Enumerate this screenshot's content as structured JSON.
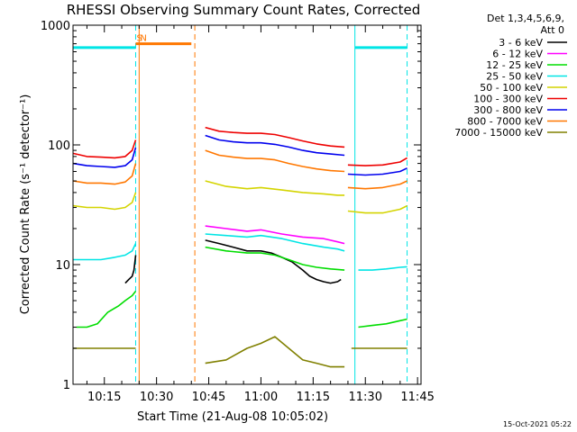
{
  "chart_data": {
    "type": "line",
    "title": "RHESSI Observing Summary Count Rates, Corrected",
    "xlabel": "Start Time (21-Aug-08 10:05:02)",
    "ylabel": "Corrected Count Rate (s⁻¹ detector⁻¹)",
    "yscale": "log",
    "xlim": [
      "10:06",
      "11:46"
    ],
    "ylim": [
      1,
      1000
    ],
    "x_ticks": [
      "10:15",
      "10:30",
      "10:45",
      "11:00",
      "11:15",
      "11:30",
      "11:45"
    ],
    "y_ticks": [
      "1",
      "10",
      "100",
      "1000"
    ],
    "legend_header": [
      "Det 1,3,4,5,6,9,",
      "Att 0"
    ],
    "legend_position": "right",
    "series": [
      {
        "name": "3 - 6 keV",
        "color": "#000000",
        "segments": [
          {
            "x": [
              "10:21",
              "10:22",
              "10:23",
              "10:23:30",
              "10:24"
            ],
            "y": [
              7,
              7.5,
              8,
              9,
              12
            ]
          },
          {
            "x": [
              "10:44",
              "10:48",
              "10:52",
              "10:56",
              "11:00",
              "11:03",
              "11:06",
              "11:09",
              "11:12",
              "11:14",
              "11:16",
              "11:18",
              "11:20",
              "11:22",
              "11:23"
            ],
            "y": [
              16,
              15,
              14,
              13,
              13,
              12.5,
              11.5,
              10.5,
              9,
              8,
              7.5,
              7.2,
              7.0,
              7.2,
              7.5
            ]
          }
        ]
      },
      {
        "name": "6 - 12 keV",
        "color": "#ff00ff",
        "segments": [
          {
            "x": [
              "10:44",
              "10:50",
              "10:56",
              "11:00",
              "11:06",
              "11:12",
              "11:18",
              "11:22",
              "11:24"
            ],
            "y": [
              21,
              20,
              19,
              19.5,
              18,
              17,
              16.5,
              15.5,
              15
            ]
          }
        ]
      },
      {
        "name": "12 - 25 keV",
        "color": "#00dd00",
        "segments": [
          {
            "x": [
              "10:07",
              "10:10",
              "10:13",
              "10:16",
              "10:19",
              "10:21",
              "10:23",
              "10:24"
            ],
            "y": [
              3,
              3,
              3.2,
              4,
              4.5,
              5,
              5.5,
              6
            ]
          },
          {
            "x": [
              "10:44",
              "10:50",
              "10:56",
              "11:00",
              "11:04",
              "11:08",
              "11:12",
              "11:16",
              "11:20",
              "11:24"
            ],
            "y": [
              14,
              13,
              12.5,
              12.5,
              12,
              11,
              10,
              9.5,
              9.2,
              9
            ]
          },
          {
            "x": [
              "11:28",
              "11:32",
              "11:36",
              "11:40",
              "11:42"
            ],
            "y": [
              3,
              3.1,
              3.2,
              3.4,
              3.5
            ]
          }
        ]
      },
      {
        "name": "25 - 50 keV",
        "color": "#00e5e5",
        "segments": [
          {
            "x": [
              "10:06",
              "10:10",
              "10:14",
              "10:18",
              "10:21",
              "10:23",
              "10:24"
            ],
            "y": [
              11,
              11,
              11,
              11.5,
              12,
              13,
              15
            ]
          },
          {
            "x": [
              "10:44",
              "10:50",
              "10:56",
              "11:00",
              "11:06",
              "11:12",
              "11:18",
              "11:22",
              "11:24"
            ],
            "y": [
              18,
              17.5,
              17,
              17.5,
              16.5,
              15,
              14,
              13.5,
              13
            ]
          },
          {
            "x": [
              "11:28",
              "11:32",
              "11:36",
              "11:40",
              "11:42"
            ],
            "y": [
              9,
              9,
              9.2,
              9.5,
              9.6
            ]
          }
        ]
      },
      {
        "name": "50 - 100 keV",
        "color": "#d4d400",
        "segments": [
          {
            "x": [
              "10:06",
              "10:10",
              "10:14",
              "10:18",
              "10:21",
              "10:23",
              "10:24"
            ],
            "y": [
              31,
              30,
              30,
              29,
              30,
              33,
              40
            ]
          },
          {
            "x": [
              "10:44",
              "10:50",
              "10:56",
              "11:00",
              "11:06",
              "11:12",
              "11:18",
              "11:22",
              "11:24"
            ],
            "y": [
              50,
              45,
              43,
              44,
              42,
              40,
              39,
              38,
              38
            ]
          },
          {
            "x": [
              "11:25",
              "11:30",
              "11:35",
              "11:40",
              "11:42"
            ],
            "y": [
              28,
              27,
              27,
              29,
              31
            ]
          }
        ]
      },
      {
        "name": "100 - 300 keV",
        "color": "#ee0000",
        "segments": [
          {
            "x": [
              "10:06",
              "10:10",
              "10:14",
              "10:18",
              "10:21",
              "10:23",
              "10:24"
            ],
            "y": [
              85,
              80,
              79,
              78,
              80,
              90,
              110
            ]
          },
          {
            "x": [
              "10:44",
              "10:48",
              "10:52",
              "10:56",
              "11:00",
              "11:04",
              "11:08",
              "11:12",
              "11:16",
              "11:20",
              "11:24"
            ],
            "y": [
              140,
              130,
              127,
              125,
              125,
              122,
              115,
              108,
              102,
              98,
              96
            ]
          },
          {
            "x": [
              "11:25",
              "11:30",
              "11:35",
              "11:40",
              "11:42"
            ],
            "y": [
              68,
              67,
              68,
              72,
              78
            ]
          }
        ]
      },
      {
        "name": "300 - 800 keV",
        "color": "#0000ee",
        "segments": [
          {
            "x": [
              "10:06",
              "10:10",
              "10:14",
              "10:18",
              "10:21",
              "10:23",
              "10:24"
            ],
            "y": [
              70,
              67,
              66,
              65,
              67,
              75,
              95
            ]
          },
          {
            "x": [
              "10:44",
              "10:48",
              "10:52",
              "10:56",
              "11:00",
              "11:04",
              "11:08",
              "11:12",
              "11:16",
              "11:20",
              "11:24"
            ],
            "y": [
              120,
              110,
              106,
              104,
              104,
              101,
              96,
              90,
              86,
              84,
              82
            ]
          },
          {
            "x": [
              "11:25",
              "11:30",
              "11:35",
              "11:40",
              "11:42"
            ],
            "y": [
              57,
              56,
              57,
              60,
              64
            ]
          }
        ]
      },
      {
        "name": "800 - 7000 keV",
        "color": "#ff7700",
        "segments": [
          {
            "x": [
              "10:06",
              "10:10",
              "10:14",
              "10:18",
              "10:21",
              "10:23",
              "10:24"
            ],
            "y": [
              50,
              48,
              48,
              47,
              49,
              55,
              70
            ]
          },
          {
            "x": [
              "10:44",
              "10:48",
              "10:52",
              "10:56",
              "11:00",
              "11:04",
              "11:08",
              "11:12",
              "11:16",
              "11:20",
              "11:24"
            ],
            "y": [
              90,
              82,
              79,
              77,
              77,
              75,
              70,
              66,
              63,
              61,
              60
            ]
          },
          {
            "x": [
              "11:25",
              "11:30",
              "11:35",
              "11:40",
              "11:42"
            ],
            "y": [
              44,
              43,
              44,
              47,
              50
            ]
          }
        ]
      },
      {
        "name": "7000 - 15000 keV",
        "color": "#808000",
        "segments": [
          {
            "x": [
              "10:06",
              "10:10",
              "10:14",
              "10:18",
              "10:22",
              "10:24"
            ],
            "y": [
              2,
              2,
              2,
              2,
              2,
              2
            ]
          },
          {
            "x": [
              "10:44",
              "10:50",
              "10:56",
              "11:00",
              "11:04",
              "11:08",
              "11:12",
              "11:16",
              "11:20",
              "11:24"
            ],
            "y": [
              1.5,
              1.6,
              2,
              2.2,
              2.5,
              2,
              1.6,
              1.5,
              1.4,
              1.4
            ]
          },
          {
            "x": [
              "11:26",
              "11:30",
              "11:35",
              "11:40",
              "11:42"
            ],
            "y": [
              2,
              2,
              2,
              2,
              2
            ]
          }
        ]
      }
    ],
    "state_bars": [
      {
        "label": "S",
        "color": "#ff7700",
        "x": [
          "10:24",
          "10:25"
        ],
        "y": 700
      },
      {
        "label": "N",
        "color": "#ff7700",
        "x": [
          "10:25",
          "10:40"
        ],
        "y": 700
      },
      {
        "label": "",
        "color": "#00e5e5",
        "x": [
          "10:06",
          "10:24"
        ],
        "y": 650
      },
      {
        "label": "",
        "color": "#00e5e5",
        "x": [
          "11:27",
          "11:42"
        ],
        "y": 650
      }
    ],
    "vertical_lines": [
      {
        "x": "10:24",
        "color": "#00e5e5",
        "style": "dashed"
      },
      {
        "x": "10:25",
        "color": "#ff7700",
        "style": "solid"
      },
      {
        "x": "10:41",
        "color": "#ff7700",
        "style": "dashed"
      },
      {
        "x": "11:27",
        "color": "#00e5e5",
        "style": "solid"
      },
      {
        "x": "11:42",
        "color": "#00e5e5",
        "style": "dashed"
      }
    ]
  },
  "footer": {
    "timestamp": "15-Oct-2021 05:22"
  }
}
